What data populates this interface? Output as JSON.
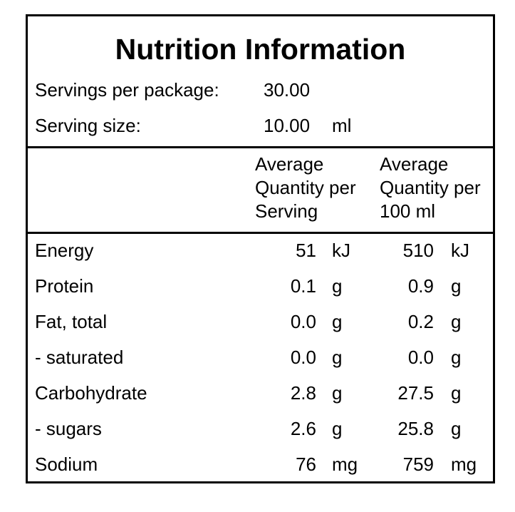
{
  "title": "Nutrition Information",
  "servings": {
    "label": "Servings per package:",
    "value": "30.00"
  },
  "serving_size": {
    "label": "Serving size:",
    "value": "10.00",
    "unit": "ml"
  },
  "header": {
    "per_serving": [
      "Average",
      "Quantity per",
      "Serving"
    ],
    "per_100": [
      "Average",
      "Quantity per",
      "100 ml"
    ]
  },
  "rows": [
    {
      "name": "Energy",
      "serving_value": "51",
      "serving_unit": "kJ",
      "per100_value": "510",
      "per100_unit": "kJ"
    },
    {
      "name": "Protein",
      "serving_value": "0.1",
      "serving_unit": "g",
      "per100_value": "0.9",
      "per100_unit": "g"
    },
    {
      "name": "Fat, total",
      "serving_value": "0.0",
      "serving_unit": "g",
      "per100_value": "0.2",
      "per100_unit": "g"
    },
    {
      "name": "- saturated",
      "serving_value": "0.0",
      "serving_unit": "g",
      "per100_value": "0.0",
      "per100_unit": "g"
    },
    {
      "name": "Carbohydrate",
      "serving_value": "2.8",
      "serving_unit": "g",
      "per100_value": "27.5",
      "per100_unit": "g"
    },
    {
      "name": "- sugars",
      "serving_value": "2.6",
      "serving_unit": "g",
      "per100_value": "25.8",
      "per100_unit": "g"
    },
    {
      "name": "Sodium",
      "serving_value": "76",
      "serving_unit": "mg",
      "per100_value": "759",
      "per100_unit": "mg"
    }
  ]
}
